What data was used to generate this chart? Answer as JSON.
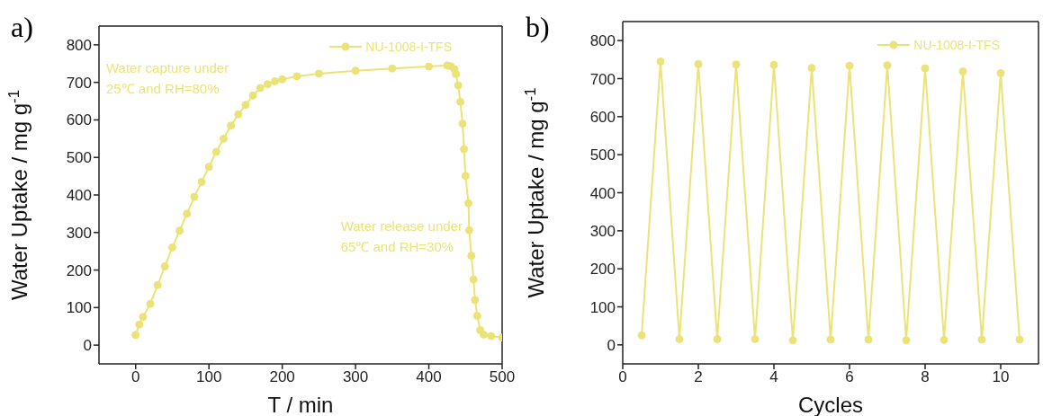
{
  "chart_data": [
    {
      "type": "line",
      "title": "a)",
      "xlabel": "T / min",
      "ylabel": "Water Uptake / mg g$^{-1}$",
      "xlim": [
        -50,
        500
      ],
      "xticks": [
        0,
        100,
        200,
        300,
        400,
        500
      ],
      "ylim": [
        -50,
        850
      ],
      "yticks": [
        0,
        100,
        200,
        300,
        400,
        500,
        600,
        700,
        800
      ],
      "grid": false,
      "legend": "top right",
      "marker": "circle",
      "line_style": "solid",
      "annotations": [
        "Water capture under\n25℃ and RH=80%",
        "Water release under\n65℃ and RH=30%"
      ],
      "series": [
        {
          "name": "NU-1008-I-TFS",
          "color": "#ebe378",
          "x": [
            0,
            5,
            10,
            20,
            30,
            40,
            50,
            60,
            70,
            80,
            90,
            100,
            110,
            120,
            130,
            140,
            150,
            160,
            170,
            180,
            190,
            200,
            220,
            250,
            300,
            350,
            400,
            425,
            430,
            435,
            437,
            440,
            443,
            446,
            448,
            450,
            454,
            455,
            458,
            461,
            463,
            466,
            470,
            475,
            485,
            500
          ],
          "values": [
            27,
            55,
            75,
            110,
            160,
            210,
            260,
            305,
            350,
            395,
            435,
            475,
            515,
            550,
            585,
            615,
            640,
            665,
            685,
            695,
            703,
            708,
            716,
            723,
            731,
            737,
            742,
            745,
            743,
            735,
            722,
            692,
            648,
            590,
            522,
            451,
            378,
            306,
            238,
            175,
            120,
            78,
            40,
            28,
            24,
            20
          ]
        }
      ]
    },
    {
      "type": "line",
      "title": "b)",
      "xlabel": "Cycles",
      "ylabel": "Water Uptake / mg g$^{-1}$",
      "xlim": [
        0,
        11
      ],
      "xticks": [
        0,
        2,
        4,
        6,
        8,
        10
      ],
      "ylim": [
        -50,
        850
      ],
      "yticks": [
        0,
        100,
        200,
        300,
        400,
        500,
        600,
        700,
        800
      ],
      "grid": false,
      "legend": "top right",
      "marker": "circle",
      "line_style": "solid",
      "series": [
        {
          "name": "NU-1008-I-TFS",
          "color": "#ebe378",
          "x": [
            0.5,
            1,
            1.5,
            2,
            2.5,
            3,
            3.5,
            4,
            4.5,
            5,
            5.5,
            6,
            6.5,
            7,
            7.5,
            8,
            8.5,
            9,
            9.5,
            10,
            10.5
          ],
          "values": [
            25,
            745,
            15,
            738,
            15,
            737,
            15,
            736,
            12,
            728,
            14,
            734,
            14,
            735,
            12,
            727,
            13,
            719,
            14,
            714,
            14
          ]
        }
      ]
    }
  ]
}
